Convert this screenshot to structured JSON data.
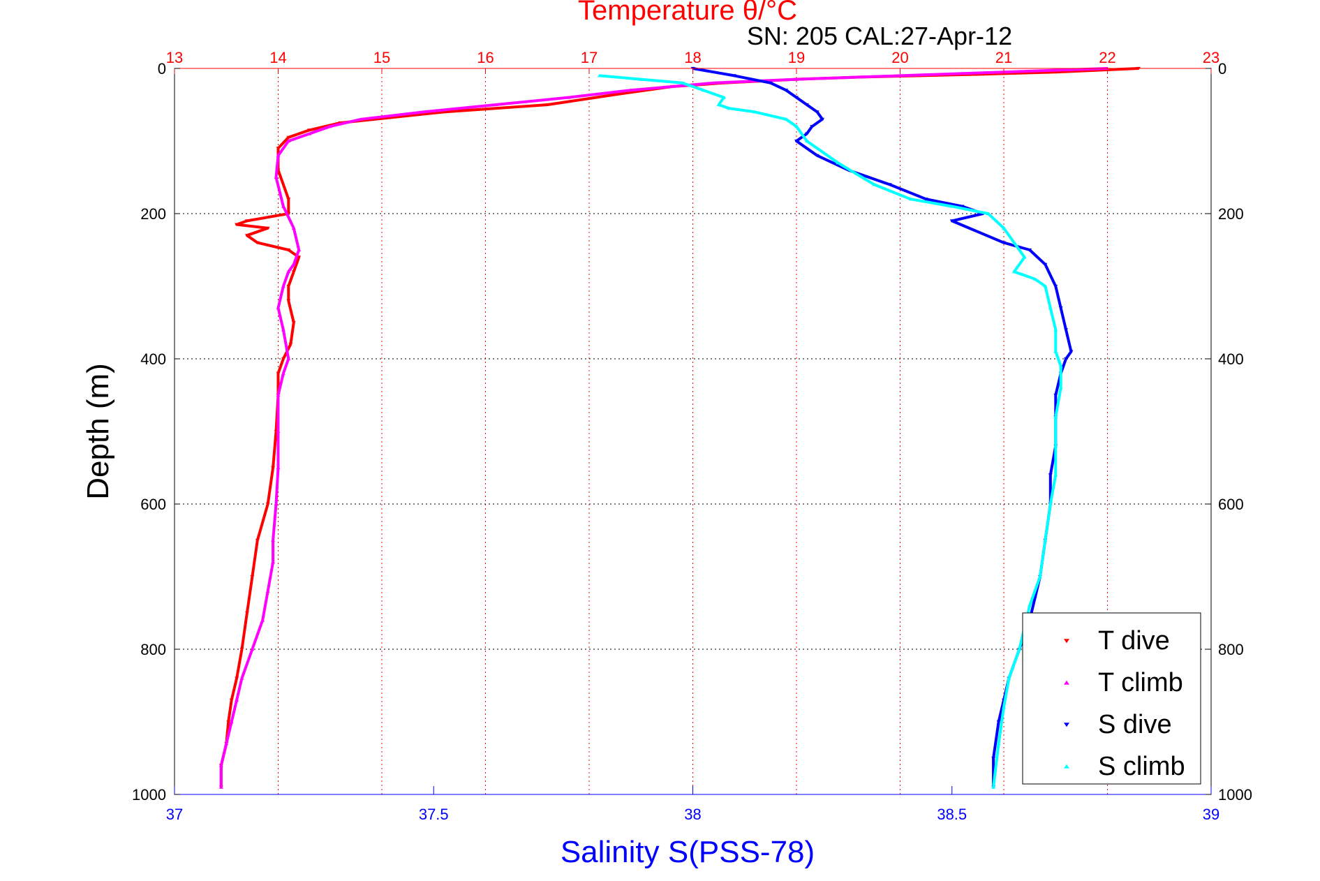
{
  "chart_data": {
    "type": "scatter",
    "title_top": "Temperature θ/°C",
    "subtitle": "SN: 205  CAL:27-Apr-12",
    "ylabel": "Depth (m)",
    "xlabel_bottom": "Salinity S(PSS-78)",
    "ylim": [
      1000,
      0
    ],
    "x_top": {
      "label": "Temperature θ/°C",
      "lim": [
        13,
        23
      ],
      "ticks": [
        "13",
        "14",
        "15",
        "16",
        "17",
        "18",
        "19",
        "20",
        "21",
        "22",
        "23"
      ]
    },
    "x_bottom": {
      "label": "Salinity S(PSS-78)",
      "lim": [
        37,
        39
      ],
      "ticks": [
        "37",
        "37.5",
        "38",
        "38.5",
        "39"
      ]
    },
    "y_ticks": [
      "0",
      "200",
      "400",
      "600",
      "800",
      "1000"
    ],
    "grid": true,
    "legend_position": "bottom-right",
    "colors": {
      "temperature_axis": "#ff0000",
      "salinity_axis": "#0000ff",
      "grid_temp": "#ff0000",
      "grid_depth": "#000000"
    },
    "series": [
      {
        "name": "T dive",
        "axis": "temperature",
        "color": "#ff0000",
        "marker": "triangle-down",
        "x": [
          22.3,
          21.5,
          20.8,
          20.2,
          19.6,
          19.0,
          18.3,
          17.8,
          17.3,
          16.6,
          15.6,
          14.6,
          14.3,
          14.1,
          14.0,
          14.0,
          14.1,
          14.1,
          13.7,
          13.6,
          13.9,
          13.7,
          13.8,
          14.1,
          14.2,
          14.15,
          14.1,
          14.1,
          14.15,
          14.12,
          14.05,
          14.0,
          14.0,
          13.98,
          13.95,
          13.9,
          13.8,
          13.75,
          13.7,
          13.65,
          13.6,
          13.55,
          13.52,
          13.5,
          13.45,
          13.45
        ],
        "y": [
          0,
          5,
          8,
          10,
          12,
          15,
          20,
          25,
          35,
          50,
          60,
          75,
          85,
          95,
          110,
          140,
          180,
          200,
          210,
          215,
          220,
          230,
          240,
          250,
          260,
          280,
          300,
          320,
          350,
          380,
          400,
          420,
          450,
          500,
          550,
          600,
          650,
          700,
          750,
          800,
          840,
          870,
          900,
          930,
          960,
          990
        ]
      },
      {
        "name": "T climb",
        "axis": "temperature",
        "color": "#ff00ff",
        "marker": "triangle-up",
        "x": [
          22.0,
          21.0,
          20.0,
          19.0,
          18.2,
          17.4,
          16.8,
          16.1,
          15.4,
          14.8,
          14.5,
          14.3,
          14.1,
          14.0,
          13.98,
          14.05,
          14.15,
          14.2,
          14.15,
          14.1,
          14.05,
          14.0,
          14.05,
          14.1,
          14.05,
          14.0,
          14.0,
          14.0,
          13.98,
          13.95,
          13.95,
          13.9,
          13.85,
          13.75,
          13.65,
          13.6,
          13.55,
          13.5,
          13.45,
          13.45
        ],
        "y": [
          0,
          5,
          10,
          15,
          20,
          30,
          40,
          50,
          60,
          70,
          80,
          90,
          100,
          120,
          150,
          190,
          220,
          250,
          270,
          280,
          300,
          330,
          360,
          400,
          420,
          450,
          500,
          550,
          600,
          650,
          680,
          720,
          760,
          800,
          840,
          870,
          900,
          930,
          960,
          990
        ]
      },
      {
        "name": "S dive",
        "axis": "salinity",
        "color": "#0000ff",
        "marker": "triangle-down",
        "x": [
          38.0,
          38.08,
          38.15,
          38.18,
          38.2,
          38.22,
          38.24,
          38.25,
          38.23,
          38.22,
          38.2,
          38.24,
          38.3,
          38.38,
          38.45,
          38.52,
          38.56,
          38.5,
          38.6,
          38.65,
          38.68,
          38.7,
          38.71,
          38.72,
          38.73,
          38.72,
          38.71,
          38.7,
          38.7,
          38.7,
          38.69,
          38.69,
          38.68,
          38.67,
          38.66,
          38.65,
          38.63,
          38.61,
          38.6,
          38.59,
          38.58,
          38.58
        ],
        "y": [
          0,
          10,
          20,
          30,
          40,
          50,
          60,
          70,
          80,
          90,
          100,
          120,
          140,
          160,
          180,
          190,
          200,
          210,
          240,
          250,
          270,
          300,
          330,
          360,
          390,
          400,
          420,
          450,
          480,
          520,
          560,
          600,
          650,
          700,
          730,
          760,
          800,
          840,
          870,
          900,
          950,
          990
        ]
      },
      {
        "name": "S climb",
        "axis": "salinity",
        "color": "#00ffff",
        "marker": "triangle-up",
        "x": [
          37.82,
          37.9,
          37.98,
          38.02,
          38.06,
          38.05,
          38.07,
          38.12,
          38.18,
          38.2,
          38.22,
          38.28,
          38.35,
          38.42,
          38.5,
          38.57,
          38.6,
          38.62,
          38.64,
          38.62,
          38.66,
          38.68,
          38.69,
          38.7,
          38.7,
          38.71,
          38.71,
          38.7,
          38.7,
          38.7,
          38.69,
          38.68,
          38.67,
          38.65,
          38.64,
          38.63,
          38.61,
          38.6,
          38.59,
          38.58
        ],
        "y": [
          10,
          15,
          20,
          30,
          40,
          50,
          55,
          60,
          70,
          80,
          100,
          130,
          160,
          180,
          190,
          200,
          220,
          240,
          260,
          280,
          290,
          300,
          330,
          360,
          390,
          410,
          440,
          480,
          520,
          560,
          600,
          650,
          700,
          740,
          770,
          800,
          840,
          880,
          930,
          990
        ]
      }
    ]
  }
}
